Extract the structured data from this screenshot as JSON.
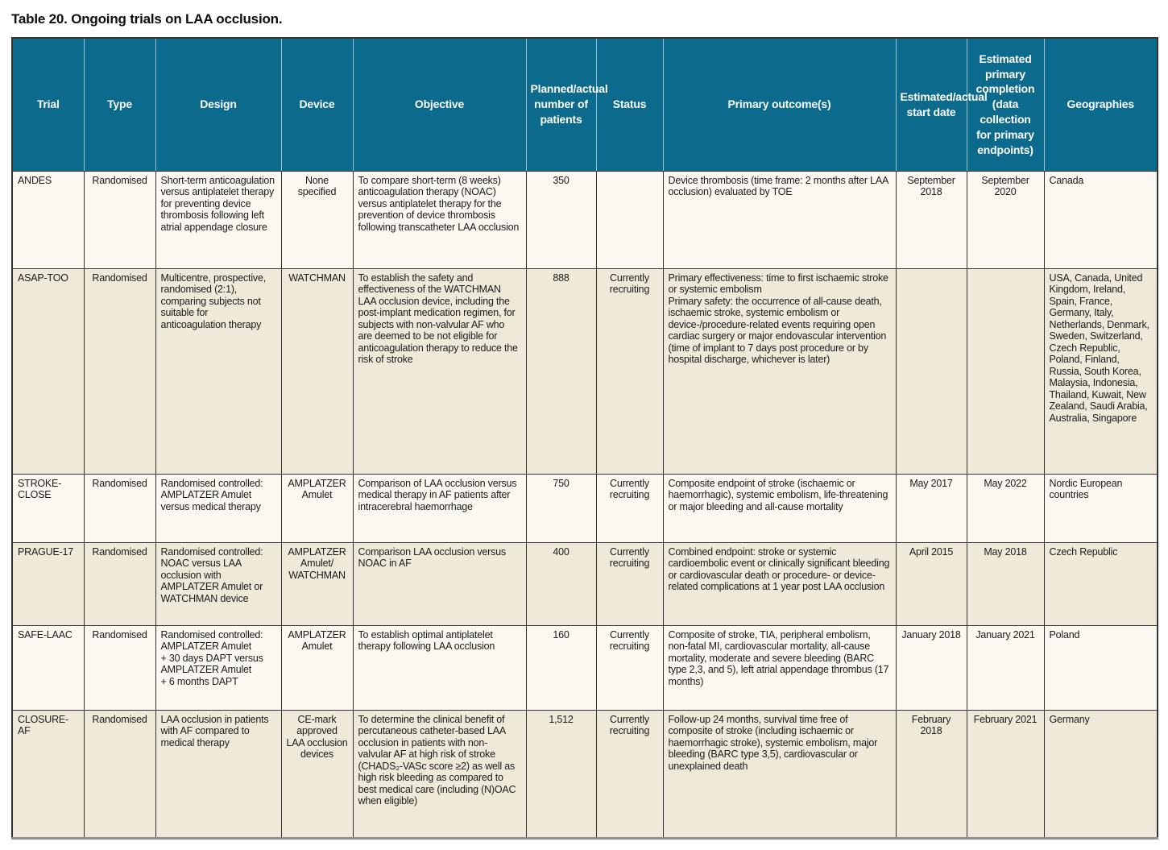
{
  "title": "Table 20. Ongoing trials on LAA occlusion.",
  "colors": {
    "header_bg": "#0c6a8d",
    "header_text": "#ffffff",
    "row_light": "#faf8f0",
    "row_shaded": "#eee9d8",
    "border_dark": "#333333"
  },
  "table": {
    "columns": [
      {
        "key": "trial",
        "label": "Trial"
      },
      {
        "key": "type",
        "label": "Type"
      },
      {
        "key": "design",
        "label": "Design"
      },
      {
        "key": "device",
        "label": "Device"
      },
      {
        "key": "objective",
        "label": "Objective"
      },
      {
        "key": "patients",
        "label": "Planned/actual number of patients"
      },
      {
        "key": "status",
        "label": "Status"
      },
      {
        "key": "outcomes",
        "label": "Primary outcome(s)"
      },
      {
        "key": "start_date",
        "label": "Estimated/actual start date"
      },
      {
        "key": "completion",
        "label": "Estimated primary completion (data collection for primary endpoints)"
      },
      {
        "key": "geographies",
        "label": "Geographies"
      }
    ],
    "rows": [
      {
        "trial": "ANDES",
        "type": "Randomised",
        "design": "Short-term anticoagulation versus antiplatelet therapy for preventing device thrombosis following left atrial appendage closure",
        "device": "None specified",
        "objective": "To compare short-term (8 weeks) anticoagulation therapy (NOAC) versus antiplatelet therapy for the prevention of device thrombosis following transcatheter LAA occlusion",
        "patients": "350",
        "status": "",
        "outcomes": "Device thrombosis (time frame: 2 months after LAA occlusion) evaluated by TOE",
        "start_date": "September 2018",
        "completion": "September 2020",
        "geographies": "Canada"
      },
      {
        "trial": "ASAP-TOO",
        "type": "Randomised",
        "design": "Multicentre, prospective, randomised (2:1), comparing subjects not suitable for anticoagulation therapy",
        "device": "WATCHMAN",
        "objective": "To establish the safety and effectiveness of the WATCHMAN LAA occlusion device, including the post-implant medication regimen, for subjects with non-valvular AF who are deemed to be not eligible for anticoagulation therapy to reduce the risk of stroke",
        "patients": "888",
        "status": "Currently recruiting",
        "outcomes": "Primary effectiveness: time to first ischaemic stroke or systemic embolism\nPrimary safety: the occurrence of all-cause death, ischaemic stroke, systemic embolism or device-/procedure-related events requiring open cardiac surgery or major endovascular intervention (time of implant to 7 days post procedure or by hospital discharge, whichever is later)",
        "start_date": "",
        "completion": "",
        "geographies": "USA, Canada, United Kingdom, Ireland, Spain, France, Germany, Italy, Netherlands, Denmark, Sweden, Switzerland, Czech Republic, Poland, Finland, Russia, South Korea, Malaysia, Indonesia, Thailand, Kuwait, New Zealand, Saudi Arabia, Australia, Singapore"
      },
      {
        "trial": "STROKE-CLOSE",
        "type": "Randomised",
        "design": "Randomised controlled: AMPLATZER Amulet versus medical therapy",
        "device": "AMPLATZER Amulet",
        "objective": "Comparison of LAA occlusion versus medical therapy in AF patients after intracerebral haemorrhage",
        "patients": "750",
        "status": "Currently recruiting",
        "outcomes": "Composite endpoint of stroke (ischaemic or haemorrhagic), systemic embolism, life-threatening or major bleeding and all-cause mortality",
        "start_date": "May 2017",
        "completion": "May 2022",
        "geographies": "Nordic European countries"
      },
      {
        "trial": "PRAGUE-17",
        "type": "Randomised",
        "design": "Randomised controlled: NOAC versus LAA occlusion with AMPLATZER Amulet or WATCHMAN device",
        "device": "AMPLATZER Amulet/ WATCHMAN",
        "objective": "Comparison LAA occlusion versus NOAC in AF",
        "patients": "400",
        "status": "Currently recruiting",
        "outcomes": "Combined endpoint: stroke or systemic cardioembolic event or clinically significant bleeding or cardiovascular death or procedure- or device-related complications at 1 year post LAA occlusion",
        "start_date": "April 2015",
        "completion": "May 2018",
        "geographies": "Czech Republic"
      },
      {
        "trial": "SAFE-LAAC",
        "type": "Randomised",
        "design": "Randomised controlled:\nAMPLATZER Amulet\n+ 30 days DAPT versus\nAMPLATZER Amulet\n+ 6 months DAPT",
        "device": "AMPLATZER Amulet",
        "objective": "To establish optimal antiplatelet therapy following LAA occlusion",
        "patients": "160",
        "status": "Currently recruiting",
        "outcomes": "Composite of stroke, TIA, peripheral embolism, non-fatal MI, cardiovascular mortality, all-cause mortality, moderate and severe bleeding (BARC type 2,3, and 5), left atrial appendage thrombus (17 months)",
        "start_date": "January 2018",
        "completion": "January 2021",
        "geographies": "Poland"
      },
      {
        "trial": "CLOSURE-AF",
        "type": "Randomised",
        "design": "LAA occlusion in patients with AF compared to medical therapy",
        "device": "CE-mark approved LAA occlusion devices",
        "objective": "To determine the clinical benefit of percutaneous catheter-based LAA occlusion in patients with non-valvular AF at high risk of stroke (CHADS₂-VASc score ≥2) as well as high risk bleeding as compared to best medical care (including (N)OAC when eligible)",
        "patients": "1,512",
        "status": "Currently recruiting",
        "outcomes": "Follow-up 24 months, survival time free of composite of stroke (including ischaemic or haemorrhagic stroke), systemic embolism, major bleeding (BARC type 3,5), cardiovascular or unexplained death",
        "start_date": "February 2018",
        "completion": "February 2021",
        "geographies": "Germany"
      }
    ]
  }
}
